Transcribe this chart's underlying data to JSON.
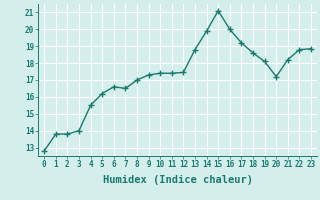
{
  "x": [
    0,
    1,
    2,
    3,
    4,
    5,
    6,
    7,
    8,
    9,
    10,
    11,
    12,
    13,
    14,
    15,
    16,
    17,
    18,
    19,
    20,
    21,
    22,
    23
  ],
  "y": [
    12.8,
    13.8,
    13.8,
    14.0,
    15.5,
    16.2,
    16.6,
    16.5,
    17.0,
    17.3,
    17.4,
    17.4,
    17.45,
    18.8,
    19.9,
    21.1,
    20.0,
    19.2,
    18.6,
    18.1,
    17.2,
    18.2,
    18.8,
    18.85
  ],
  "line_color": "#1a7a6e",
  "marker": "+",
  "marker_size": 4,
  "xlabel": "Humidex (Indice chaleur)",
  "xlim": [
    -0.5,
    23.5
  ],
  "ylim": [
    12.5,
    21.5
  ],
  "yticks": [
    13,
    14,
    15,
    16,
    17,
    18,
    19,
    20,
    21
  ],
  "xticks": [
    0,
    1,
    2,
    3,
    4,
    5,
    6,
    7,
    8,
    9,
    10,
    11,
    12,
    13,
    14,
    15,
    16,
    17,
    18,
    19,
    20,
    21,
    22,
    23
  ],
  "bg_color": "#d4eeec",
  "grid_color": "#ffffff",
  "tick_fontsize": 5.5,
  "xlabel_fontsize": 7.5,
  "line_width": 1.0
}
